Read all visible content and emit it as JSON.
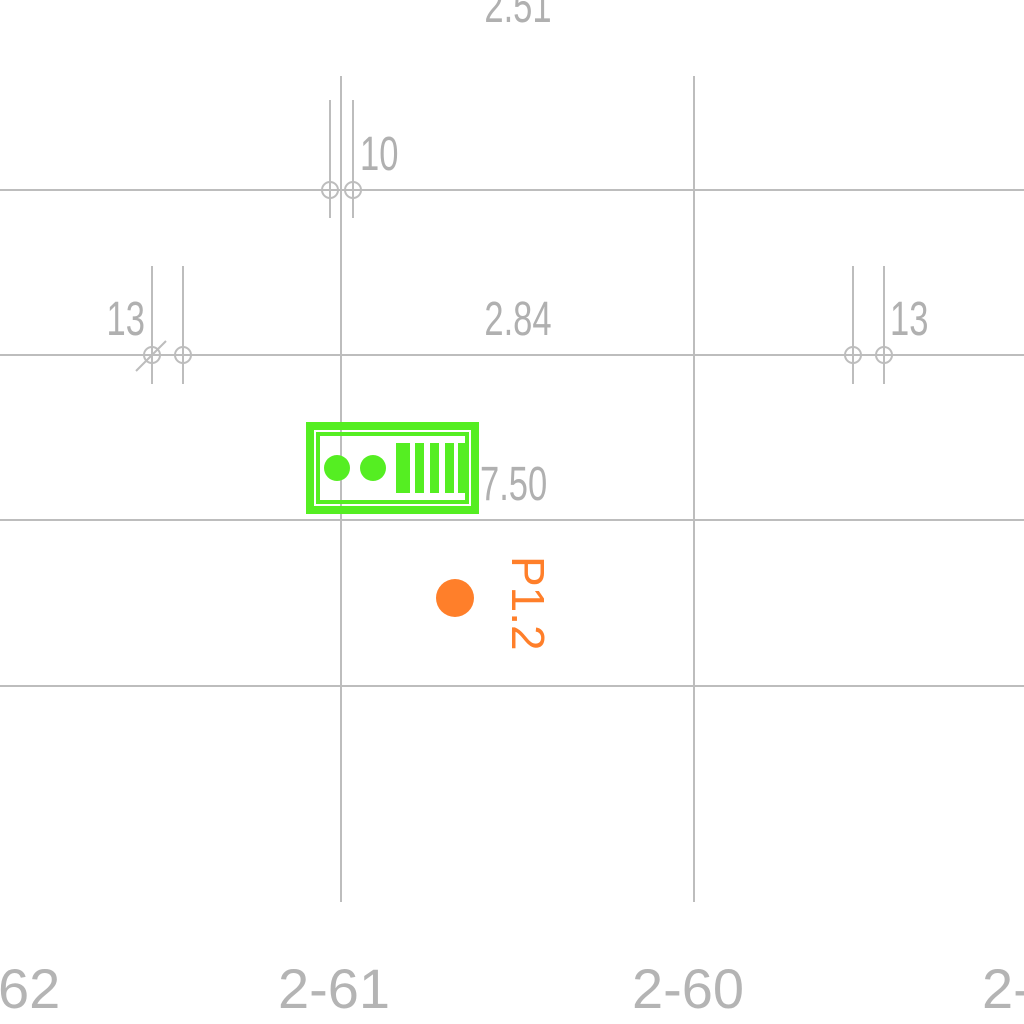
{
  "drawing": {
    "top_dimension_label": "2.51",
    "dimension_labels": {
      "gap_top": "10",
      "gap_left": "13",
      "gap_right": "13",
      "span_mid": "2.84",
      "span_low": "7.50"
    },
    "grid_axis_labels": {
      "left": "62",
      "mid_left": "2-61",
      "mid_right": "2-60",
      "right": "2-"
    },
    "point_label": "P1.2",
    "colors": {
      "grid": "#bdbdbd",
      "dimension_text": "#b0b0b0",
      "symbol_green": "#55ee22",
      "point_orange": "#ff7f2a"
    },
    "icons": {
      "equipment_symbol": "battery-pack-icon",
      "point_marker": "point-marker-icon"
    }
  }
}
